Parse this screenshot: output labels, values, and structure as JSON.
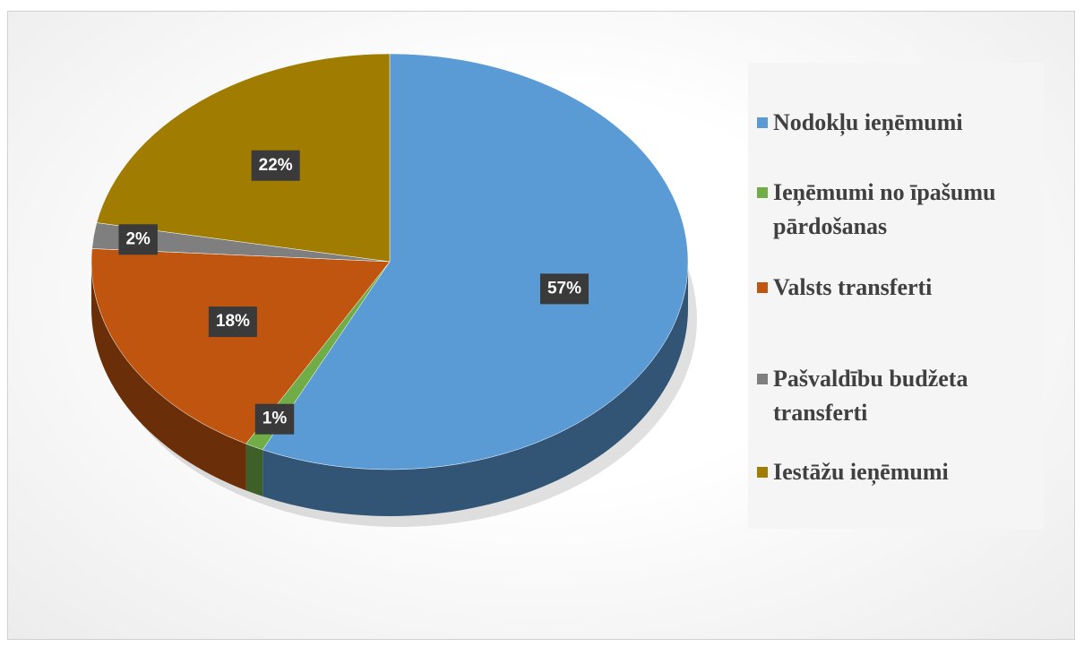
{
  "chart_data": {
    "type": "pie",
    "categories": [
      "Nodokļu ieņēmumi",
      "Ieņēmumi no īpašumu pārdošanas",
      "Valsts transferti",
      "Pašvaldību budžeta transferti",
      "Iestāžu ieņēmumi"
    ],
    "values": [
      57,
      1,
      18,
      2,
      22
    ],
    "value_labels": [
      "57%",
      "1%",
      "18%",
      "2%",
      "22%"
    ],
    "colors": [
      "#5b9bd5",
      "#70ad47",
      "#c0550f",
      "#7f7f7f",
      "#a07c00"
    ],
    "legend": "right"
  }
}
